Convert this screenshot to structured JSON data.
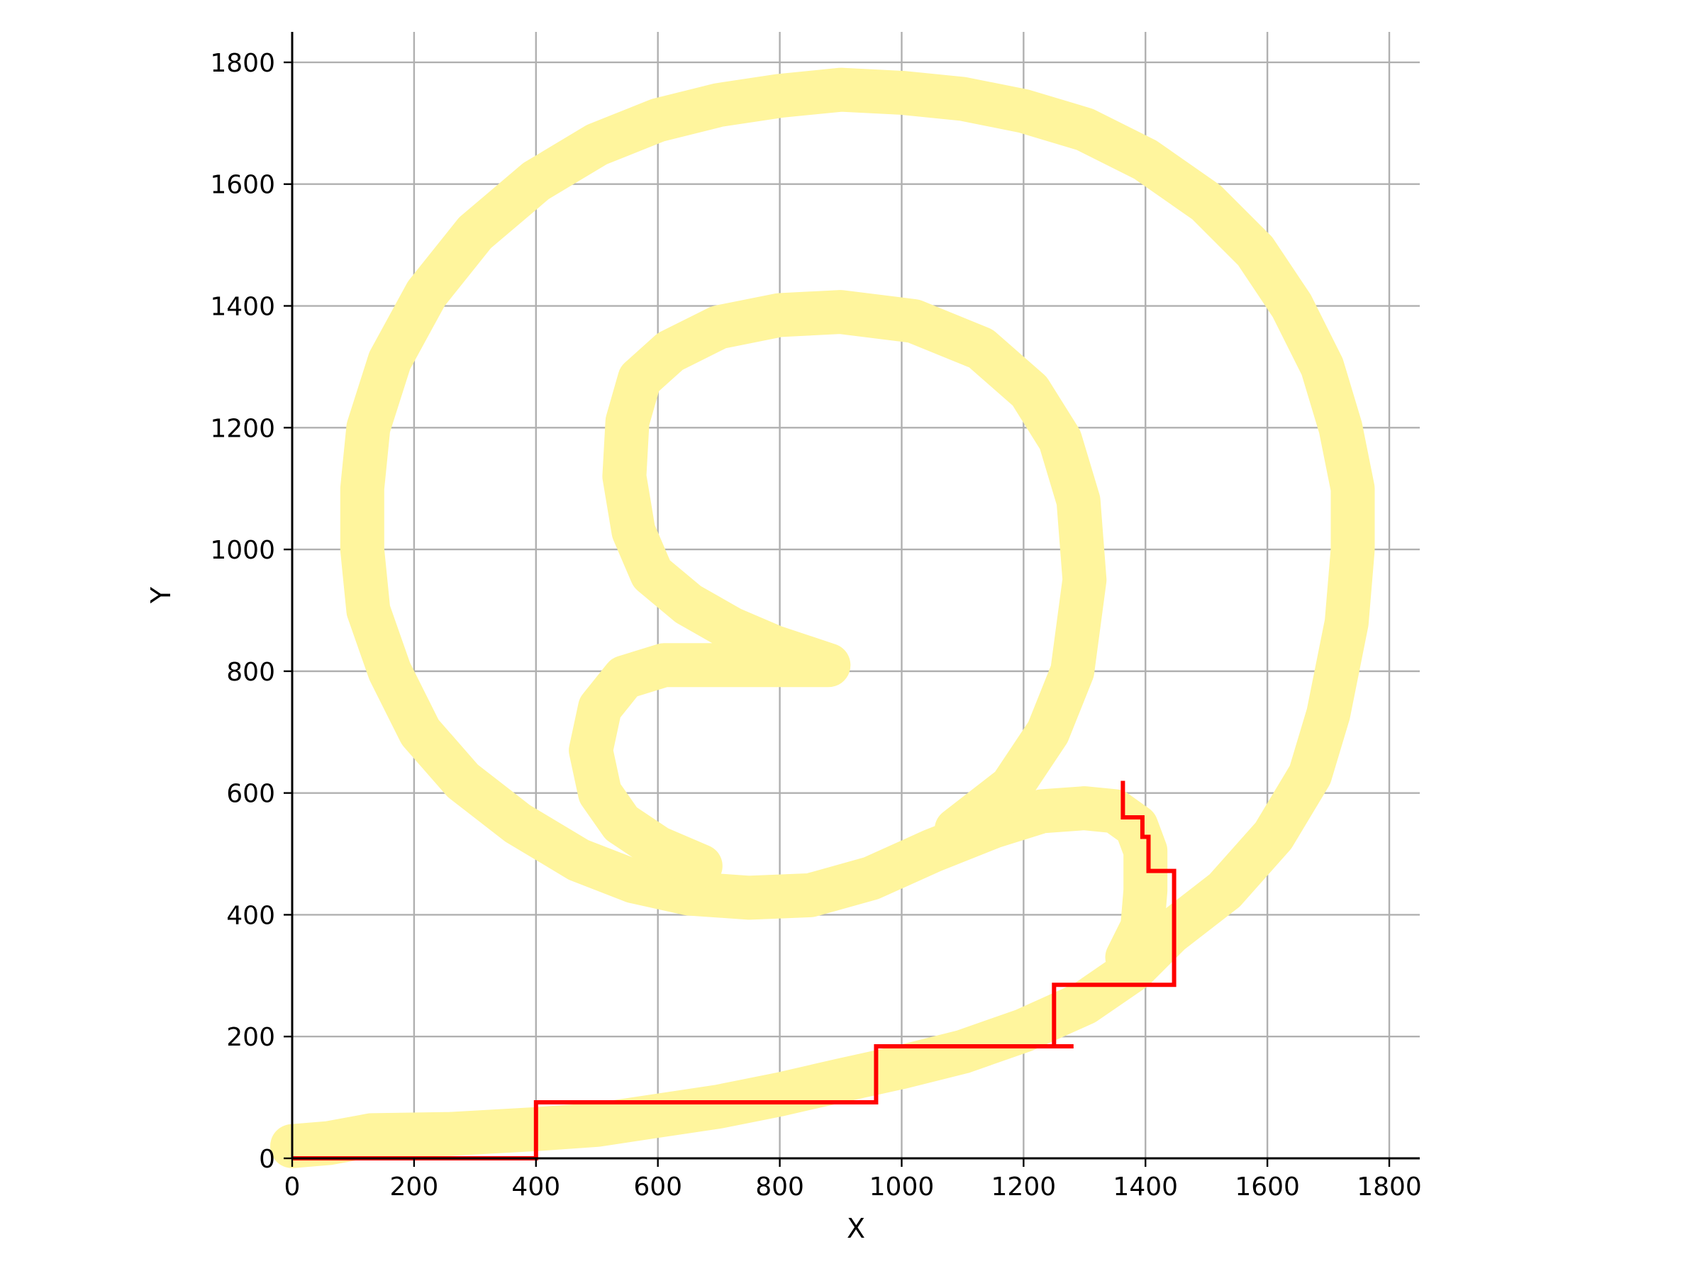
{
  "chart_data": {
    "type": "line",
    "title": "",
    "xlabel": "X",
    "ylabel": "Y",
    "xlim": [
      0,
      1850
    ],
    "ylim": [
      0,
      1850
    ],
    "xticks": [
      0,
      200,
      400,
      600,
      800,
      1000,
      1200,
      1400,
      1600,
      1800
    ],
    "yticks": [
      0,
      200,
      400,
      600,
      800,
      1000,
      1200,
      1400,
      1600,
      1800
    ],
    "grid": true,
    "legend": "none",
    "series": [
      {
        "color": "#fff59d",
        "style": "thick-band",
        "points": [
          [
            0,
            20
          ],
          [
            60,
            25
          ],
          [
            130,
            38
          ],
          [
            260,
            40
          ],
          [
            400,
            48
          ],
          [
            500,
            55
          ],
          [
            600,
            70
          ],
          [
            700,
            85
          ],
          [
            800,
            105
          ],
          [
            900,
            128
          ],
          [
            1000,
            150
          ],
          [
            1100,
            175
          ],
          [
            1200,
            210
          ],
          [
            1300,
            255
          ],
          [
            1380,
            310
          ],
          [
            1440,
            370
          ],
          [
            1530,
            440
          ],
          [
            1610,
            530
          ],
          [
            1670,
            630
          ],
          [
            1700,
            730
          ],
          [
            1730,
            880
          ],
          [
            1740,
            1000
          ],
          [
            1740,
            1100
          ],
          [
            1720,
            1200
          ],
          [
            1690,
            1300
          ],
          [
            1640,
            1400
          ],
          [
            1580,
            1490
          ],
          [
            1500,
            1570
          ],
          [
            1400,
            1640
          ],
          [
            1300,
            1690
          ],
          [
            1200,
            1720
          ],
          [
            1100,
            1740
          ],
          [
            1000,
            1750
          ],
          [
            900,
            1755
          ],
          [
            800,
            1745
          ],
          [
            700,
            1730
          ],
          [
            600,
            1705
          ],
          [
            500,
            1665
          ],
          [
            400,
            1605
          ],
          [
            300,
            1520
          ],
          [
            220,
            1420
          ],
          [
            160,
            1310
          ],
          [
            125,
            1200
          ],
          [
            115,
            1100
          ],
          [
            115,
            1000
          ],
          [
            125,
            900
          ],
          [
            160,
            800
          ],
          [
            210,
            700
          ],
          [
            280,
            620
          ],
          [
            370,
            550
          ],
          [
            470,
            490
          ],
          [
            560,
            455
          ],
          [
            650,
            435
          ],
          [
            750,
            428
          ],
          [
            850,
            432
          ],
          [
            950,
            460
          ],
          [
            1050,
            505
          ],
          [
            1150,
            545
          ],
          [
            1230,
            570
          ],
          [
            1300,
            575
          ],
          [
            1350,
            570
          ],
          [
            1385,
            545
          ],
          [
            1400,
            505
          ],
          [
            1400,
            440
          ],
          [
            1395,
            380
          ],
          [
            1370,
            330
          ]
        ]
      },
      {
        "color": "#fff59d",
        "style": "thick-band",
        "points": [
          [
            1090,
            540
          ],
          [
            1180,
            610
          ],
          [
            1240,
            700
          ],
          [
            1280,
            800
          ],
          [
            1300,
            950
          ],
          [
            1290,
            1080
          ],
          [
            1260,
            1180
          ],
          [
            1210,
            1260
          ],
          [
            1130,
            1330
          ],
          [
            1020,
            1375
          ],
          [
            900,
            1390
          ],
          [
            800,
            1385
          ],
          [
            700,
            1365
          ],
          [
            620,
            1325
          ],
          [
            570,
            1280
          ],
          [
            550,
            1210
          ],
          [
            545,
            1120
          ],
          [
            560,
            1030
          ],
          [
            590,
            960
          ],
          [
            650,
            910
          ],
          [
            720,
            870
          ],
          [
            790,
            840
          ],
          [
            880,
            810
          ],
          [
            700,
            810
          ],
          [
            610,
            810
          ],
          [
            545,
            790
          ],
          [
            505,
            740
          ],
          [
            490,
            670
          ],
          [
            505,
            600
          ],
          [
            540,
            550
          ],
          [
            600,
            510
          ],
          [
            670,
            480
          ]
        ]
      },
      {
        "color": "#ff0000",
        "style": "step-path",
        "points": [
          [
            0,
            0
          ],
          [
            400,
            0
          ],
          [
            400,
            92
          ],
          [
            958,
            92
          ],
          [
            958,
            184
          ],
          [
            1250,
            184
          ],
          [
            1282,
            184
          ],
          [
            1250,
            184
          ],
          [
            1250,
            285
          ],
          [
            1447,
            285
          ],
          [
            1447,
            472
          ],
          [
            1405,
            472
          ],
          [
            1405,
            528
          ],
          [
            1395,
            528
          ],
          [
            1395,
            560
          ],
          [
            1363,
            560
          ],
          [
            1363,
            620
          ]
        ]
      }
    ]
  }
}
